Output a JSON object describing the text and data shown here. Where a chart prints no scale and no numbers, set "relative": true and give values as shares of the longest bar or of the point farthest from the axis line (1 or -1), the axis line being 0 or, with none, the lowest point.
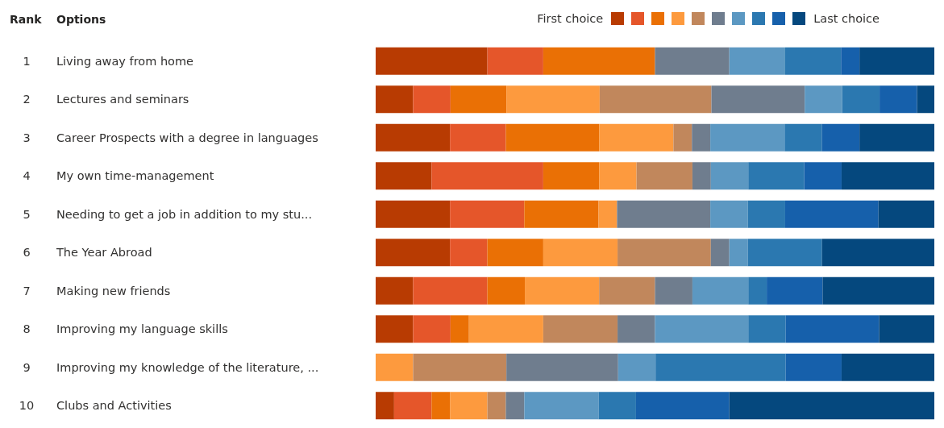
{
  "chart_data": {
    "type": "bar",
    "orientation": "horizontal",
    "stacked": true,
    "relative": true,
    "categories": [
      "Living away from home",
      "Lectures and seminars",
      "Career Prospects with a degree in languages",
      "My own time-management",
      "Needing to get a job in addition to my stu...",
      "The Year Abroad",
      "Making new friends",
      "Improving my language skills",
      "Improving my knowledge of the literature, ...",
      "Clubs and Activities"
    ],
    "annotations": [
      "Rank",
      "Options",
      "1",
      "2",
      "3",
      "4",
      "5",
      "6",
      "7",
      "8",
      "9",
      "10",
      "First choice",
      "Last choice"
    ],
    "series": [
      {
        "color": "#b83b02",
        "values": [
          0.2,
          0.067,
          0.133,
          0.1,
          0.133,
          0.133,
          0.067,
          0.067,
          0,
          0.033
        ]
      },
      {
        "color": "#e5562a",
        "values": [
          0.1,
          0.067,
          0.1,
          0.2,
          0.133,
          0.067,
          0.133,
          0.067,
          0,
          0.067
        ]
      },
      {
        "color": "#ea7005",
        "values": [
          0.2,
          0.1,
          0.167,
          0.1,
          0.133,
          0.1,
          0.067,
          0.033,
          0,
          0.033
        ]
      },
      {
        "color": "#fd9a3e",
        "values": [
          0,
          0.167,
          0.133,
          0.067,
          0.033,
          0.133,
          0.133,
          0.133,
          0.067,
          0.067
        ]
      },
      {
        "color": "#c1875c",
        "values": [
          0,
          0.2,
          0.033,
          0.1,
          0,
          0.167,
          0.1,
          0.133,
          0.167,
          0.033
        ]
      },
      {
        "color": "#6f7d8e",
        "values": [
          0.133,
          0.167,
          0.033,
          0.033,
          0.167,
          0.033,
          0.067,
          0.067,
          0.2,
          0.033
        ]
      },
      {
        "color": "#5c98c2",
        "values": [
          0.1,
          0.067,
          0.133,
          0.067,
          0.067,
          0.033,
          0.1,
          0.167,
          0.067,
          0.133
        ]
      },
      {
        "color": "#2b78b0",
        "values": [
          0.1,
          0.067,
          0.067,
          0.1,
          0.067,
          0.133,
          0.033,
          0.067,
          0.233,
          0.067
        ]
      },
      {
        "color": "#1660ab",
        "values": [
          0.033,
          0.067,
          0.067,
          0.067,
          0.167,
          0,
          0.1,
          0.167,
          0.1,
          0.167
        ]
      },
      {
        "color": "#05487e",
        "values": [
          0.134,
          0.031,
          0.134,
          0.166,
          0.1,
          0.201,
          0.2,
          0.099,
          0.166,
          0.367
        ]
      }
    ]
  }
}
